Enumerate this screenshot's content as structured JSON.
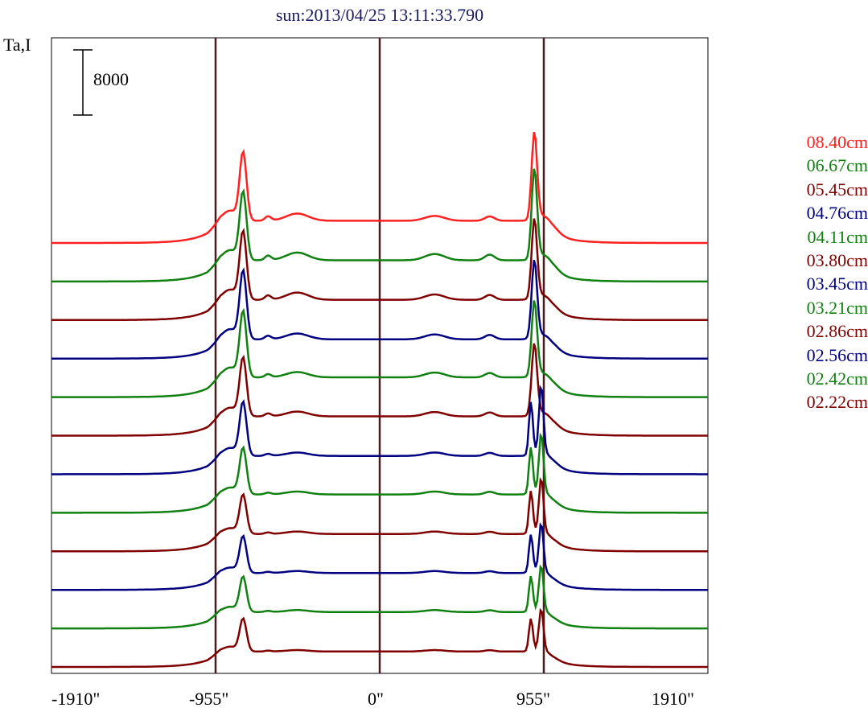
{
  "chart_data": {
    "type": "line",
    "title": "sun:2013/04/25 13:11:33.790",
    "ylabel": "Ta,I",
    "scale_bar_label": "8000",
    "scale_bar_value": 8000,
    "xlim": [
      -1910,
      1910
    ],
    "x_ticks": [
      -1910,
      -955,
      0,
      955,
      1910
    ],
    "x_tick_labels": [
      "-1910\"",
      "-955\"",
      "0\"",
      "955\"",
      "1910\""
    ],
    "vertical_lines": [
      -955,
      0,
      955
    ],
    "series": [
      {
        "name": "08.40cm",
        "color": "#ff2020",
        "peak_left": 14000,
        "peak_right": 18000,
        "mid": 4600,
        "bump1": 1500,
        "bump2": 1000,
        "double_right": false
      },
      {
        "name": "06.67cm",
        "color": "#108010",
        "peak_left": 14000,
        "peak_right": 18600,
        "mid": 4400,
        "bump1": 1600,
        "bump2": 1300,
        "double_right": false
      },
      {
        "name": "05.45cm",
        "color": "#800000",
        "peak_left": 14000,
        "peak_right": 16500,
        "mid": 4200,
        "bump1": 1500,
        "bump2": 1100,
        "double_right": false
      },
      {
        "name": "04.76cm",
        "color": "#000080",
        "peak_left": 14000,
        "peak_right": 16100,
        "mid": 4000,
        "bump1": 1200,
        "bump2": 1000,
        "double_right": false
      },
      {
        "name": "04.11cm",
        "color": "#108010",
        "peak_left": 13500,
        "peak_right": 15600,
        "mid": 4100,
        "bump1": 1100,
        "bump2": 1000,
        "double_right": false
      },
      {
        "name": "03.80cm",
        "color": "#800000",
        "peak_left": 12000,
        "peak_right": 14800,
        "mid": 4000,
        "bump1": 1000,
        "bump2": 900,
        "double_right": false
      },
      {
        "name": "03.45cm",
        "color": "#000080",
        "peak_left": 11000,
        "peak_right": 13800,
        "mid": 3800,
        "bump1": 700,
        "bump2": 700,
        "double_right": true
      },
      {
        "name": "03.21cm",
        "color": "#108010",
        "peak_left": 9500,
        "peak_right": 12000,
        "mid": 3800,
        "bump1": 600,
        "bump2": 600,
        "double_right": true
      },
      {
        "name": "02.86cm",
        "color": "#800000",
        "peak_left": 8000,
        "peak_right": 11000,
        "mid": 3600,
        "bump1": 500,
        "bump2": 500,
        "double_right": true
      },
      {
        "name": "02.56cm",
        "color": "#000080",
        "peak_left": 7500,
        "peak_right": 9800,
        "mid": 3500,
        "bump1": 400,
        "bump2": 400,
        "double_right": true
      },
      {
        "name": "02.42cm",
        "color": "#108010",
        "peak_left": 7200,
        "peak_right": 9200,
        "mid": 3400,
        "bump1": 400,
        "bump2": 400,
        "double_right": true
      },
      {
        "name": "02.22cm",
        "color": "#800000",
        "peak_left": 6700,
        "peak_right": 8400,
        "mid": 3200,
        "bump1": 300,
        "bump2": 300,
        "double_right": true
      }
    ]
  }
}
